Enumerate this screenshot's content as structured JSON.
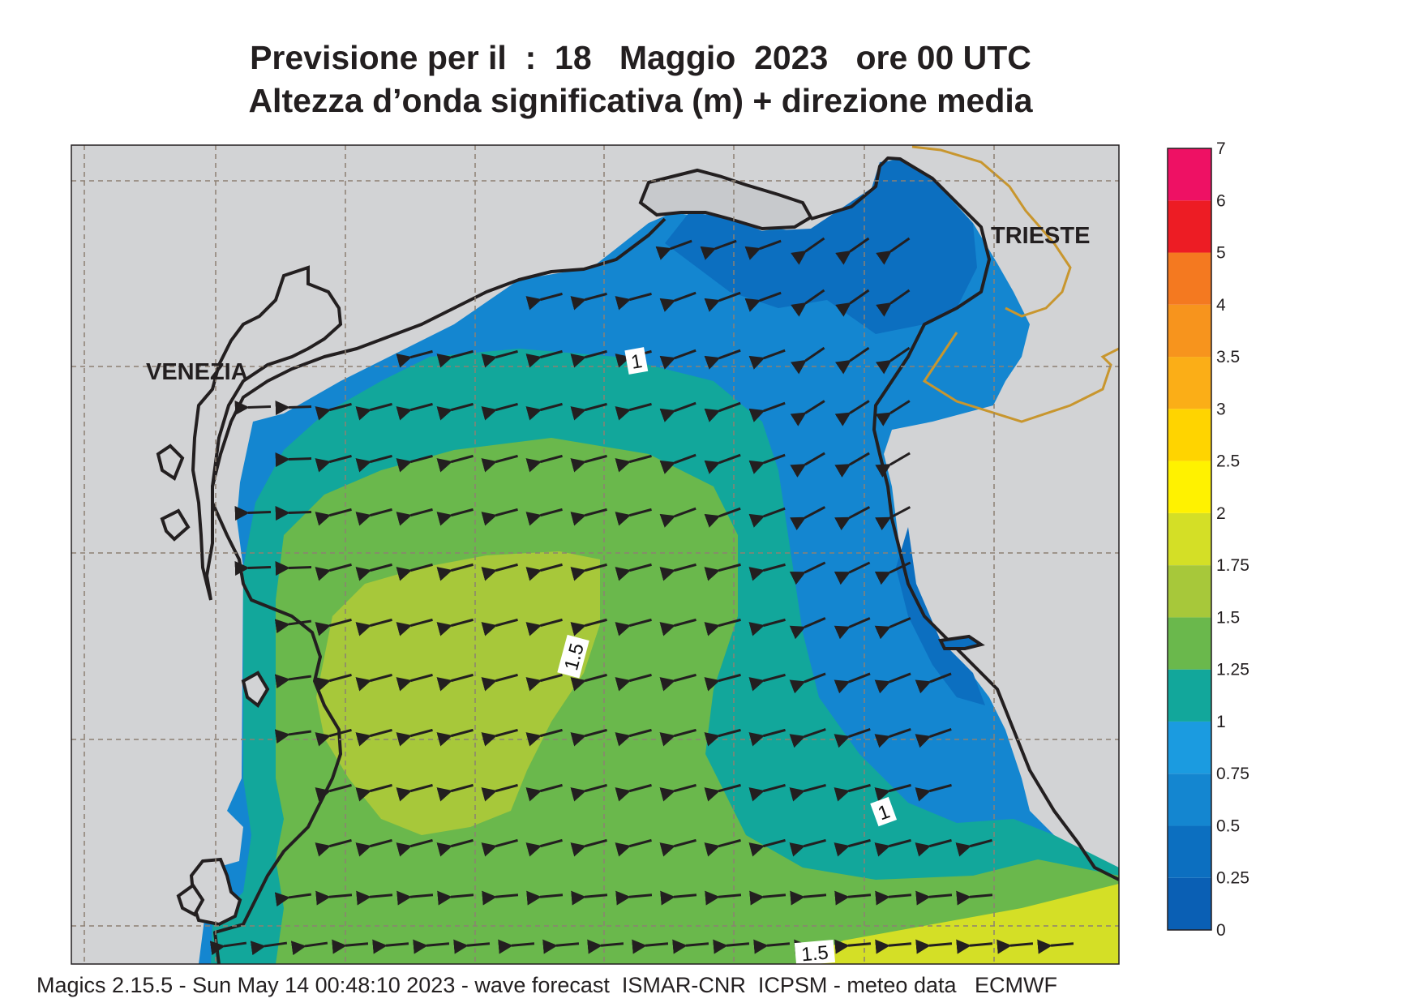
{
  "title": {
    "line1": "Previsione per il  :  18   Maggio  2023   ore 00 UTC",
    "line2": "Altezza d’onda significativa (m) + direzione media"
  },
  "map": {
    "city_labels": [
      "VENEZIA",
      "TRIESTE"
    ],
    "contour_labels": [
      "1",
      "1.5",
      "1",
      "1.5"
    ],
    "colors": {
      "land": "#d2d3d5",
      "border": "#c8962e",
      "coast": "#231f20",
      "arrow": "#231f20"
    },
    "wave_direction": "toward west / south-west"
  },
  "legend": {
    "unit": "m",
    "levels": [
      {
        "label": "0",
        "color": "#0a5fb4"
      },
      {
        "label": "0.25",
        "color": "#0c6fc0"
      },
      {
        "label": "0.5",
        "color": "#1486d0"
      },
      {
        "label": "0.75",
        "color": "#1b9be0"
      },
      {
        "label": "1",
        "color": "#12a79b"
      },
      {
        "label": "1.25",
        "color": "#6ab84c"
      },
      {
        "label": "1.5",
        "color": "#a7c83a"
      },
      {
        "label": "1.75",
        "color": "#d4df26"
      },
      {
        "label": "2",
        "color": "#fff200"
      },
      {
        "label": "2.5",
        "color": "#ffd400"
      },
      {
        "label": "3",
        "color": "#fbae17"
      },
      {
        "label": "3.5",
        "color": "#f7941d"
      },
      {
        "label": "4",
        "color": "#f47920"
      },
      {
        "label": "5",
        "color": "#ed1c24"
      },
      {
        "label": "6",
        "color": "#ee1164"
      }
    ],
    "top_label": "7"
  },
  "footer": "Magics 2.15.5 - Sun May 14 00:48:10 2023 - wave forecast  ISMAR-CNR  ICPSM - meteo data   ECMWF"
}
